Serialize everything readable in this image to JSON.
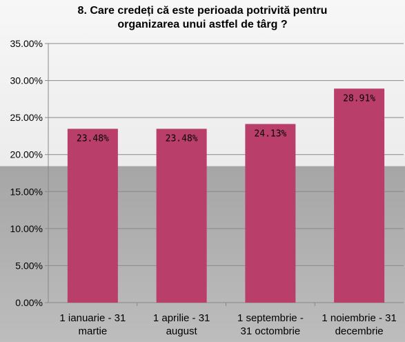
{
  "chart_data": {
    "type": "bar",
    "title_lines": [
      "8. Care credeți că este perioada potrivită pentru",
      "organizarea unui astfel de târg ?"
    ],
    "categories": [
      [
        "1 ianuarie - 31",
        "martie"
      ],
      [
        "1 aprilie - 31",
        "august"
      ],
      [
        "1 septembrie -",
        "31 octombrie"
      ],
      [
        "1 noiembrie - 31",
        "decembrie"
      ]
    ],
    "values": [
      23.48,
      23.48,
      24.13,
      28.91
    ],
    "data_labels": [
      "23.48%",
      "23.48%",
      "24.13%",
      "28.91%"
    ],
    "yticks": [
      "0.00%",
      "5.00%",
      "10.00%",
      "15.00%",
      "20.00%",
      "25.00%",
      "30.00%",
      "35.00%"
    ],
    "ylim": [
      0,
      35
    ],
    "grid": true,
    "legend": "none",
    "bar_color": "#b93f6a",
    "grid_color": "#888888"
  }
}
